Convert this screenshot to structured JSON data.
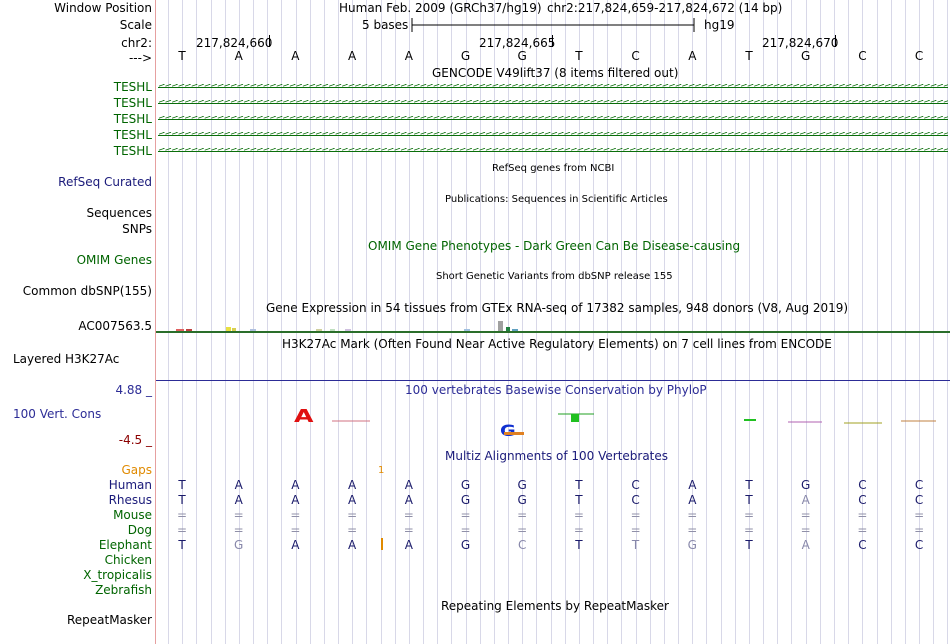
{
  "header": {
    "window_position_label": "Window Position",
    "scale_label": "Scale",
    "chrom_label": "chr2:",
    "strand_label": "--->",
    "assembly": "Human Feb. 2009 (GRCh37/hg19)",
    "position": "chr2:217,824,659-217,824,672 (14 bp)",
    "scale_text": "5 bases",
    "scale_db": "hg19",
    "ticks": [
      "217,824,660",
      "217,824,665",
      "217,824,670"
    ]
  },
  "bases": [
    "T",
    "A",
    "A",
    "A",
    "A",
    "G",
    "G",
    "T",
    "C",
    "A",
    "T",
    "G",
    "C",
    "C"
  ],
  "tracks": {
    "gencode_title": "GENCODE V49lift37 (8 items filtered out)",
    "teshl": [
      "TESHL",
      "TESHL",
      "TESHL",
      "TESHL",
      "TESHL"
    ],
    "refseq_title": "RefSeq genes from NCBI",
    "refseq_label": "RefSeq Curated",
    "pubs_title": "Publications: Sequences in Scientific Articles",
    "sequences_label": "Sequences",
    "snps_label": "SNPs",
    "omim_title": "OMIM Gene Phenotypes - Dark Green Can Be Disease-causing",
    "omim_label": "OMIM Genes",
    "dbsnp_title": "Short Genetic Variants from dbSNP release 155",
    "dbsnp_label": "Common dbSNP(155)",
    "gtex_title": "Gene Expression in 54 tissues from GTEx RNA-seq of 17382 samples, 948 donors (V8, Aug 2019)",
    "gtex_label": "AC007563.5",
    "h3k27ac_title": "H3K27Ac Mark (Often Found Near Active Regulatory Elements) on 7 cell lines from ENCODE",
    "h3k27ac_label": "Layered H3K27Ac",
    "phylop_title": "100 vertebrates Basewise Conservation by PhyloP",
    "phylop_label": "100 Vert. Cons",
    "phylop_max": "4.88 _",
    "phylop_min": "-4.5 _",
    "multiz_title": "Multiz Alignments of 100 Vertebrates",
    "gaps_label": "Gaps",
    "repeat_title": "Repeating Elements by RepeatMasker",
    "repeat_label": "RepeatMasker"
  },
  "alignment": {
    "species": [
      "Human",
      "Rhesus",
      "Mouse",
      "Dog",
      "Elephant",
      "Chicken",
      "X_tropicalis",
      "Zebrafish"
    ],
    "rows": [
      [
        "T",
        "A",
        "A",
        "A",
        "A",
        "G",
        "G",
        "T",
        "C",
        "A",
        "T",
        "G",
        "C",
        "C"
      ],
      [
        "T",
        "A",
        "A",
        "A",
        "A",
        "G",
        "G",
        "T",
        "C",
        "A",
        "T",
        "A",
        "C",
        "C"
      ],
      [
        "=",
        "=",
        "=",
        "=",
        "=",
        "=",
        "=",
        "=",
        "=",
        "=",
        "=",
        "=",
        "=",
        "="
      ],
      [
        "=",
        "=",
        "=",
        "=",
        "=",
        "=",
        "=",
        "=",
        "=",
        "=",
        "=",
        "=",
        "=",
        "="
      ],
      [
        "T",
        "G",
        "A",
        "A",
        "A",
        "G",
        "C",
        "T",
        "T",
        "G",
        "T",
        "A",
        "C",
        "C"
      ],
      [],
      [],
      []
    ],
    "gap_mark": "1"
  },
  "colors": {
    "track_green": "#006400",
    "navy": "#1a1a7a",
    "phylop_blue": "#2c2c96",
    "phylop_red": "#8b0000",
    "orange": "#e08a00"
  }
}
